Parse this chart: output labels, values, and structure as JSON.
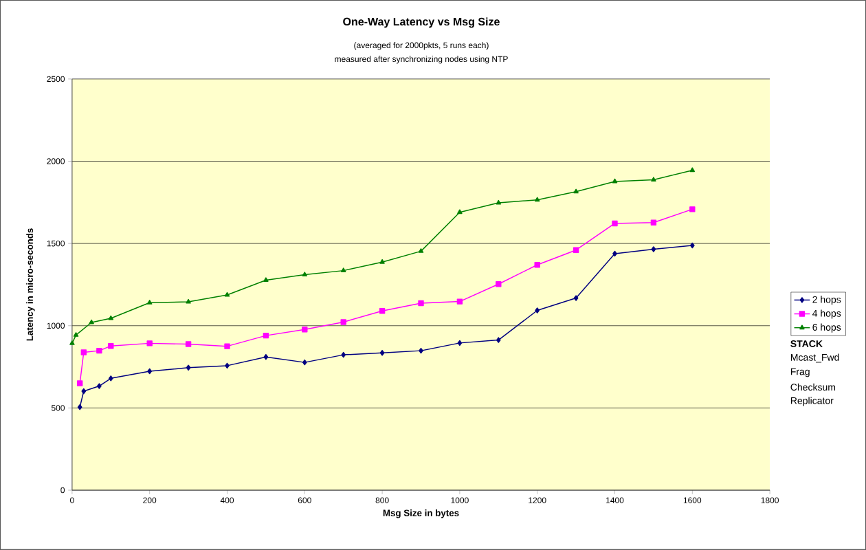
{
  "chart_data": {
    "type": "line",
    "title": "One-Way Latency vs Msg Size",
    "subtitle": "(averaged for 2000pkts, 5 runs each)",
    "xlabel": "Msg Size in bytes",
    "ylabel": "Latency in micro-seconds",
    "xlim": [
      0,
      1800
    ],
    "xticks": [
      0,
      200,
      400,
      600,
      800,
      1000,
      1200,
      1400,
      1600,
      1800
    ],
    "ylim": [
      0,
      2500
    ],
    "yticks": [
      0,
      500,
      1000,
      1500,
      2000,
      2500
    ],
    "grid": "y",
    "legend": "right",
    "series": [
      {
        "name": "2 hops",
        "color": "#000080",
        "marker": "diamond",
        "x": [
          20,
          30,
          70,
          100,
          200,
          300,
          400,
          500,
          600,
          700,
          800,
          900,
          1000,
          1100,
          1200,
          1300,
          1400,
          1500,
          1600
        ],
        "values": [
          505,
          602,
          633,
          680,
          723,
          745,
          757,
          810,
          777,
          823,
          835,
          848,
          895,
          913,
          1093,
          1168,
          1438,
          1465,
          1488
        ]
      },
      {
        "name": "4 hops",
        "color": "#ff00ff",
        "marker": "square",
        "x": [
          20,
          30,
          70,
          100,
          200,
          300,
          400,
          500,
          600,
          700,
          800,
          900,
          1000,
          1100,
          1200,
          1300,
          1400,
          1500,
          1600
        ],
        "values": [
          650,
          838,
          848,
          877,
          893,
          888,
          875,
          940,
          977,
          1022,
          1090,
          1137,
          1147,
          1253,
          1370,
          1460,
          1622,
          1627,
          1708
        ]
      },
      {
        "name": "6 hops",
        "color": "#008000",
        "marker": "triangle",
        "x": [
          0,
          10,
          50,
          100,
          200,
          300,
          400,
          500,
          600,
          700,
          800,
          900,
          1000,
          1100,
          1200,
          1300,
          1400,
          1500,
          1600
        ],
        "values": [
          893,
          943,
          1020,
          1045,
          1140,
          1145,
          1187,
          1277,
          1310,
          1335,
          1387,
          1453,
          1690,
          1747,
          1765,
          1815,
          1877,
          1887,
          1945
        ]
      }
    ],
    "annotations": [
      "measured after synchronizing nodes using NTP",
      "STACK",
      "Mcast_Fwd",
      "Frag",
      "Checksum",
      "Replicator"
    ]
  }
}
